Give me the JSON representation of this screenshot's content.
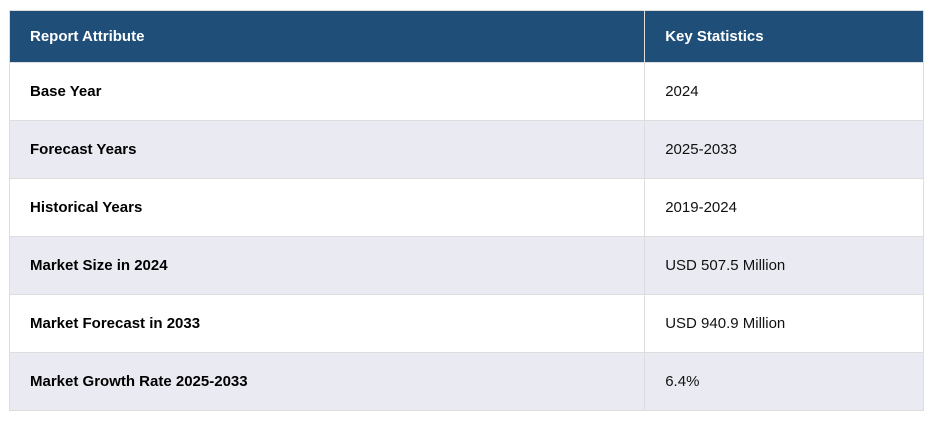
{
  "table": {
    "headers": {
      "attribute": "Report Attribute",
      "statistic": "Key Statistics"
    },
    "rows": [
      {
        "attribute": "Base Year",
        "statistic": "2024"
      },
      {
        "attribute": "Forecast Years",
        "statistic": "2025-2033"
      },
      {
        "attribute": "Historical Years",
        "statistic": "2019-2024"
      },
      {
        "attribute": "Market Size in 2024",
        "statistic": "USD 507.5 Million"
      },
      {
        "attribute": "Market Forecast in 2033",
        "statistic": "USD 940.9 Million"
      },
      {
        "attribute": "Market Growth Rate 2025-2033",
        "statistic": "6.4%"
      }
    ],
    "colors": {
      "header_bg": "#1f4e79",
      "header_text": "#ffffff",
      "alt_row_bg": "#eaeaf2",
      "border": "#dddddd"
    }
  }
}
